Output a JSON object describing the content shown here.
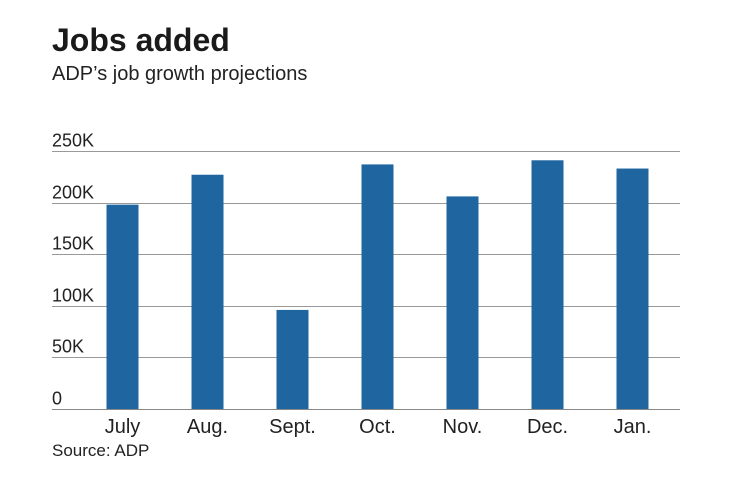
{
  "title": "Jobs added",
  "subtitle": "ADP’s job growth projections",
  "source": "Source: ADP",
  "colors": {
    "bar": "#1f66a0",
    "gridline": "#999999",
    "baseline": "#888888"
  },
  "chart_data": {
    "type": "bar",
    "title": "Jobs added",
    "subtitle": "ADP’s job growth projections",
    "xlabel": "",
    "ylabel": "",
    "categories": [
      "July",
      "Aug.",
      "Sept.",
      "Oct.",
      "Nov.",
      "Dec.",
      "Jan."
    ],
    "values": [
      198000,
      227000,
      96000,
      237000,
      206000,
      241000,
      233000
    ],
    "ylim": [
      0,
      250000
    ],
    "yticks": [
      0,
      50000,
      100000,
      150000,
      200000,
      250000
    ],
    "ytick_labels": [
      "0",
      "50K",
      "100K",
      "150K",
      "200K",
      "250K"
    ],
    "grid": true,
    "legend": "none"
  }
}
